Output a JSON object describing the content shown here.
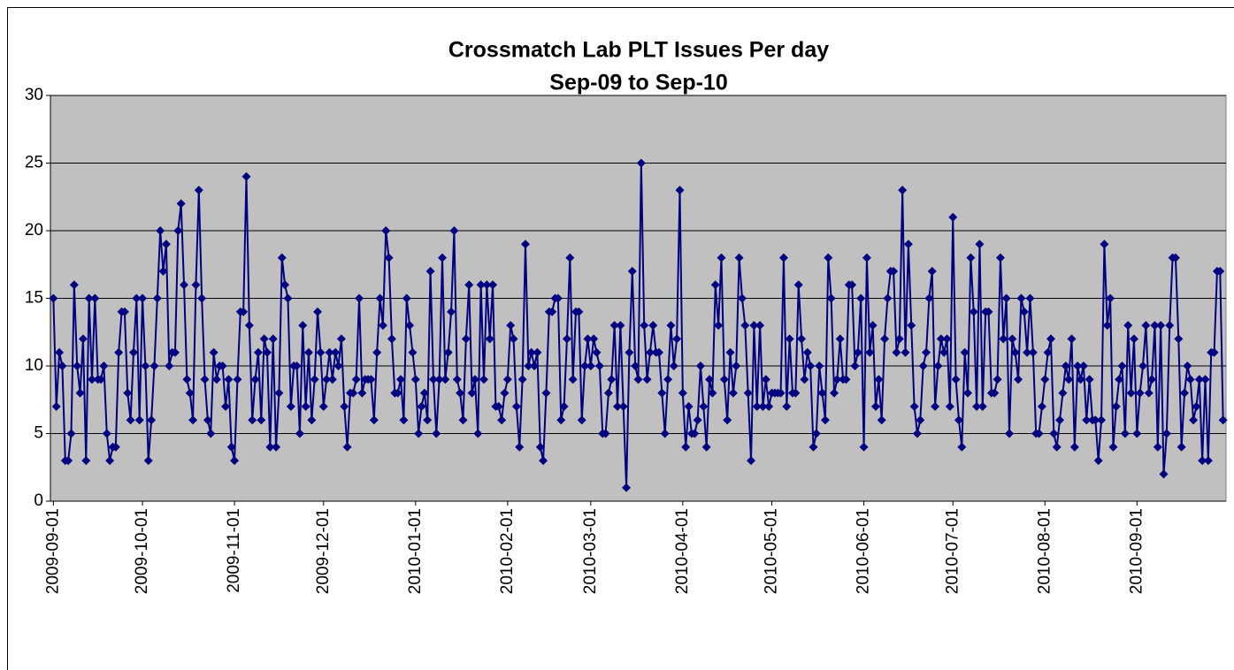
{
  "chart_data": {
    "type": "line",
    "title": "Crossmatch Lab PLT Issues Per day",
    "subtitle": "Sep-09 to Sep-10",
    "x": [
      "2009-09-01",
      "2009-09-02",
      "2009-09-03",
      "2009-09-04",
      "2009-09-05",
      "2009-09-06",
      "2009-09-07",
      "2009-09-08",
      "2009-09-09",
      "2009-09-10",
      "2009-09-11",
      "2009-09-12",
      "2009-09-13",
      "2009-09-14",
      "2009-09-15",
      "2009-09-16",
      "2009-09-17",
      "2009-09-18",
      "2009-09-19",
      "2009-09-20",
      "2009-09-21",
      "2009-09-22",
      "2009-09-23",
      "2009-09-24",
      "2009-09-25",
      "2009-09-26",
      "2009-09-27",
      "2009-09-28",
      "2009-09-29",
      "2009-09-30",
      "2009-10-01",
      "2009-10-02",
      "2009-10-03",
      "2009-10-04",
      "2009-10-05",
      "2009-10-06",
      "2009-10-07",
      "2009-10-08",
      "2009-10-09",
      "2009-10-10",
      "2009-10-11",
      "2009-10-12",
      "2009-10-13",
      "2009-10-14",
      "2009-10-15",
      "2009-10-16",
      "2009-10-17",
      "2009-10-18",
      "2009-10-19",
      "2009-10-20",
      "2009-10-21",
      "2009-10-22",
      "2009-10-23",
      "2009-10-24",
      "2009-10-25",
      "2009-10-26",
      "2009-10-27",
      "2009-10-28",
      "2009-10-29",
      "2009-10-30",
      "2009-10-31",
      "2009-11-01",
      "2009-11-02",
      "2009-11-03",
      "2009-11-04",
      "2009-11-05",
      "2009-11-06",
      "2009-11-07",
      "2009-11-08",
      "2009-11-09",
      "2009-11-10",
      "2009-11-11",
      "2009-11-12",
      "2009-11-13",
      "2009-11-14",
      "2009-11-15",
      "2009-11-16",
      "2009-11-17",
      "2009-11-18",
      "2009-11-19",
      "2009-11-20",
      "2009-11-21",
      "2009-11-22",
      "2009-11-23",
      "2009-11-24",
      "2009-11-25",
      "2009-11-26",
      "2009-11-27",
      "2009-11-28",
      "2009-11-29",
      "2009-11-30",
      "2009-12-01",
      "2009-12-02",
      "2009-12-03",
      "2009-12-04",
      "2009-12-05",
      "2009-12-06",
      "2009-12-07",
      "2009-12-08",
      "2009-12-09",
      "2009-12-10",
      "2009-12-11",
      "2009-12-12",
      "2009-12-13",
      "2009-12-14",
      "2009-12-15",
      "2009-12-16",
      "2009-12-17",
      "2009-12-18",
      "2009-12-19",
      "2009-12-20",
      "2009-12-21",
      "2009-12-22",
      "2009-12-23",
      "2009-12-24",
      "2009-12-25",
      "2009-12-26",
      "2009-12-27",
      "2009-12-28",
      "2009-12-29",
      "2009-12-30",
      "2009-12-31",
      "2010-01-01",
      "2010-01-02",
      "2010-01-03",
      "2010-01-04",
      "2010-01-05",
      "2010-01-06",
      "2010-01-07",
      "2010-01-08",
      "2010-01-09",
      "2010-01-10",
      "2010-01-11",
      "2010-01-12",
      "2010-01-13",
      "2010-01-14",
      "2010-01-15",
      "2010-01-16",
      "2010-01-17",
      "2010-01-18",
      "2010-01-19",
      "2010-01-20",
      "2010-01-21",
      "2010-01-22",
      "2010-01-23",
      "2010-01-24",
      "2010-01-25",
      "2010-01-26",
      "2010-01-27",
      "2010-01-28",
      "2010-01-29",
      "2010-01-30",
      "2010-01-31",
      "2010-02-01",
      "2010-02-02",
      "2010-02-03",
      "2010-02-04",
      "2010-02-05",
      "2010-02-06",
      "2010-02-07",
      "2010-02-08",
      "2010-02-09",
      "2010-02-10",
      "2010-02-11",
      "2010-02-12",
      "2010-02-13",
      "2010-02-14",
      "2010-02-15",
      "2010-02-16",
      "2010-02-17",
      "2010-02-18",
      "2010-02-19",
      "2010-02-20",
      "2010-02-21",
      "2010-02-22",
      "2010-02-23",
      "2010-02-24",
      "2010-02-25",
      "2010-02-26",
      "2010-02-27",
      "2010-02-28",
      "2010-03-01",
      "2010-03-02",
      "2010-03-03",
      "2010-03-04",
      "2010-03-05",
      "2010-03-06",
      "2010-03-07",
      "2010-03-08",
      "2010-03-09",
      "2010-03-10",
      "2010-03-11",
      "2010-03-12",
      "2010-03-13",
      "2010-03-14",
      "2010-03-15",
      "2010-03-16",
      "2010-03-17",
      "2010-03-18",
      "2010-03-19",
      "2010-03-20",
      "2010-03-21",
      "2010-03-22",
      "2010-03-23",
      "2010-03-24",
      "2010-03-25",
      "2010-03-26",
      "2010-03-27",
      "2010-03-28",
      "2010-03-29",
      "2010-03-30",
      "2010-03-31",
      "2010-04-01",
      "2010-04-02",
      "2010-04-03",
      "2010-04-04",
      "2010-04-05",
      "2010-04-06",
      "2010-04-07",
      "2010-04-08",
      "2010-04-09",
      "2010-04-10",
      "2010-04-11",
      "2010-04-12",
      "2010-04-13",
      "2010-04-14",
      "2010-04-15",
      "2010-04-16",
      "2010-04-17",
      "2010-04-18",
      "2010-04-19",
      "2010-04-20",
      "2010-04-21",
      "2010-04-22",
      "2010-04-23",
      "2010-04-24",
      "2010-04-25",
      "2010-04-26",
      "2010-04-27",
      "2010-04-28",
      "2010-04-29",
      "2010-04-30",
      "2010-05-01",
      "2010-05-02",
      "2010-05-03",
      "2010-05-04",
      "2010-05-05",
      "2010-05-06",
      "2010-05-07",
      "2010-05-08",
      "2010-05-09",
      "2010-05-10",
      "2010-05-11",
      "2010-05-12",
      "2010-05-13",
      "2010-05-14",
      "2010-05-15",
      "2010-05-16",
      "2010-05-17",
      "2010-05-18",
      "2010-05-19",
      "2010-05-20",
      "2010-05-21",
      "2010-05-22",
      "2010-05-23",
      "2010-05-24",
      "2010-05-25",
      "2010-05-26",
      "2010-05-27",
      "2010-05-28",
      "2010-05-29",
      "2010-05-30",
      "2010-05-31",
      "2010-06-01",
      "2010-06-02",
      "2010-06-03",
      "2010-06-04",
      "2010-06-05",
      "2010-06-06",
      "2010-06-07",
      "2010-06-08",
      "2010-06-09",
      "2010-06-10",
      "2010-06-11",
      "2010-06-12",
      "2010-06-13",
      "2010-06-14",
      "2010-06-15",
      "2010-06-16",
      "2010-06-17",
      "2010-06-18",
      "2010-06-19",
      "2010-06-20",
      "2010-06-21",
      "2010-06-22",
      "2010-06-23",
      "2010-06-24",
      "2010-06-25",
      "2010-06-26",
      "2010-06-27",
      "2010-06-28",
      "2010-06-29",
      "2010-06-30",
      "2010-07-01",
      "2010-07-02",
      "2010-07-03",
      "2010-07-04",
      "2010-07-05",
      "2010-07-06",
      "2010-07-07",
      "2010-07-08",
      "2010-07-09",
      "2010-07-10",
      "2010-07-11",
      "2010-07-12",
      "2010-07-13",
      "2010-07-14",
      "2010-07-15",
      "2010-07-16",
      "2010-07-17",
      "2010-07-18",
      "2010-07-19",
      "2010-07-20",
      "2010-07-21",
      "2010-07-22",
      "2010-07-23",
      "2010-07-24",
      "2010-07-25",
      "2010-07-26",
      "2010-07-27",
      "2010-07-28",
      "2010-07-29",
      "2010-07-30",
      "2010-07-31",
      "2010-08-01",
      "2010-08-02",
      "2010-08-03",
      "2010-08-04",
      "2010-08-05",
      "2010-08-06",
      "2010-08-07",
      "2010-08-08",
      "2010-08-09",
      "2010-08-10",
      "2010-08-11",
      "2010-08-12",
      "2010-08-13",
      "2010-08-14",
      "2010-08-15",
      "2010-08-16",
      "2010-08-17",
      "2010-08-18",
      "2010-08-19",
      "2010-08-20",
      "2010-08-21",
      "2010-08-22",
      "2010-08-23",
      "2010-08-24",
      "2010-08-25",
      "2010-08-26",
      "2010-08-27",
      "2010-08-28",
      "2010-08-29",
      "2010-08-30",
      "2010-08-31",
      "2010-09-01",
      "2010-09-02",
      "2010-09-03",
      "2010-09-04",
      "2010-09-05",
      "2010-09-06",
      "2010-09-07",
      "2010-09-08",
      "2010-09-09",
      "2010-09-10",
      "2010-09-11",
      "2010-09-12",
      "2010-09-13",
      "2010-09-14",
      "2010-09-15",
      "2010-09-16",
      "2010-09-17",
      "2010-09-18",
      "2010-09-19",
      "2010-09-20",
      "2010-09-21",
      "2010-09-22",
      "2010-09-23",
      "2010-09-24",
      "2010-09-25",
      "2010-09-26",
      "2010-09-27",
      "2010-09-28",
      "2010-09-29",
      "2010-09-30"
    ],
    "series": [
      {
        "color": "#000080",
        "values": [
          15,
          7,
          11,
          10,
          3,
          3,
          5,
          16,
          10,
          8,
          12,
          3,
          15,
          9,
          15,
          9,
          9,
          10,
          5,
          3,
          4,
          4,
          11,
          14,
          14,
          8,
          6,
          11,
          15,
          6,
          15,
          10,
          3,
          6,
          10,
          15,
          20,
          17,
          19,
          10,
          11,
          11,
          20,
          22,
          16,
          9,
          8,
          6,
          16,
          23,
          15,
          9,
          6,
          5,
          11,
          9,
          10,
          10,
          7,
          9,
          4,
          3,
          9,
          14,
          14,
          24,
          13,
          6,
          9,
          11,
          6,
          12,
          11,
          4,
          12,
          4,
          8,
          18,
          16,
          15,
          7,
          10,
          10,
          5,
          13,
          7,
          11,
          6,
          9,
          14,
          11,
          7,
          9,
          11,
          9,
          11,
          10,
          12,
          7,
          4,
          8,
          8,
          9,
          15,
          8,
          9,
          9,
          9,
          6,
          11,
          15,
          13,
          20,
          18,
          12,
          8,
          8,
          9,
          6,
          15,
          13,
          11,
          9,
          5,
          7,
          8,
          6,
          17,
          9,
          5,
          9,
          18,
          9,
          11,
          14,
          20,
          9,
          8,
          6,
          12,
          16,
          8,
          9,
          5,
          16,
          9,
          16,
          12,
          16,
          7,
          7,
          6,
          8,
          9,
          13,
          12,
          7,
          4,
          9,
          19,
          10,
          11,
          10,
          11,
          4,
          3,
          8,
          14,
          14,
          15,
          15,
          6,
          7,
          12,
          18,
          9,
          14,
          14,
          6,
          10,
          12,
          10,
          12,
          11,
          10,
          5,
          5,
          8,
          9,
          13,
          7,
          13,
          7,
          1,
          11,
          17,
          10,
          9,
          25,
          13,
          9,
          11,
          13,
          11,
          11,
          8,
          5,
          9,
          13,
          10,
          12,
          23,
          8,
          4,
          7,
          5,
          5,
          6,
          10,
          7,
          4,
          9,
          8,
          16,
          13,
          18,
          9,
          6,
          11,
          8,
          10,
          18,
          15,
          13,
          8,
          3,
          13,
          7,
          13,
          7,
          9,
          7,
          8,
          8,
          8,
          8,
          18,
          7,
          12,
          8,
          8,
          16,
          12,
          9,
          11,
          10,
          4,
          5,
          10,
          8,
          6,
          18,
          15,
          8,
          9,
          12,
          9,
          9,
          16,
          16,
          10,
          11,
          15,
          4,
          18,
          11,
          13,
          7,
          9,
          6,
          12,
          15,
          17,
          17,
          11,
          12,
          23,
          11,
          19,
          13,
          7,
          5,
          6,
          10,
          11,
          15,
          17,
          7,
          10,
          12,
          11,
          12,
          7,
          21,
          9,
          6,
          4,
          11,
          8,
          18,
          14,
          7,
          19,
          7,
          14,
          14,
          8,
          8,
          9,
          18,
          12,
          15,
          5,
          12,
          11,
          9,
          15,
          14,
          11,
          15,
          11,
          5,
          5,
          7,
          9,
          11,
          12,
          5,
          4,
          6,
          8,
          10,
          9,
          12,
          4,
          10,
          9,
          10,
          6,
          9,
          6,
          6,
          3,
          6,
          19,
          13,
          15,
          4,
          7,
          9,
          10,
          5,
          13,
          8,
          12,
          5,
          8,
          10,
          13,
          8,
          9,
          13,
          4,
          13,
          2,
          5,
          13,
          18,
          18,
          12,
          4,
          8,
          10,
          9,
          6,
          7,
          9,
          3,
          9,
          3,
          11,
          11,
          17,
          17,
          6
        ]
      }
    ],
    "xlim": [
      "2009-08-31",
      "2010-10-01"
    ],
    "xticks": [
      "2009-09-01",
      "2009-10-01",
      "2009-11-01",
      "2009-12-01",
      "2010-01-01",
      "2010-02-01",
      "2010-03-01",
      "2010-04-01",
      "2010-05-01",
      "2010-06-01",
      "2010-07-01",
      "2010-08-01",
      "2010-09-01"
    ],
    "ylim": [
      0,
      30
    ],
    "yticks": [
      0,
      5,
      10,
      15,
      20,
      25,
      30
    ],
    "grid": true,
    "marker": "diamond",
    "plot_background": "#c0c0c0"
  }
}
